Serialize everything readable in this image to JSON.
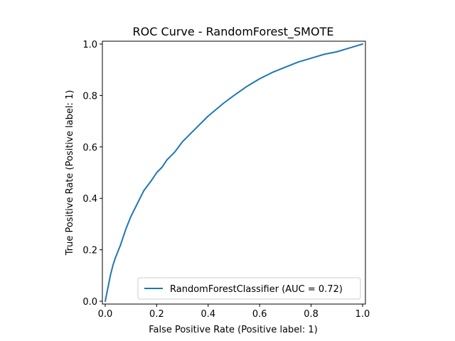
{
  "chart_data": {
    "type": "line",
    "title": "ROC Curve - RandomForest_SMOTE",
    "xlabel": "False Positive Rate (Positive label: 1)",
    "ylabel": "True Positive Rate (Positive label: 1)",
    "xlim": [
      0.0,
      1.0
    ],
    "ylim": [
      0.0,
      1.0
    ],
    "xticks": [
      "0.0",
      "0.2",
      "0.4",
      "0.6",
      "0.8",
      "1.0"
    ],
    "yticks": [
      "0.0",
      "0.2",
      "0.4",
      "0.6",
      "0.8",
      "1.0"
    ],
    "grid": false,
    "legend_position": "lower-right",
    "series": [
      {
        "name": "RandomForestClassifier (AUC = 0.72)",
        "color": "#1f77b4",
        "x": [
          0.0,
          0.01,
          0.02,
          0.03,
          0.04,
          0.06,
          0.08,
          0.1,
          0.12,
          0.15,
          0.18,
          0.2,
          0.22,
          0.24,
          0.27,
          0.3,
          0.35,
          0.4,
          0.46,
          0.5,
          0.55,
          0.6,
          0.65,
          0.7,
          0.75,
          0.8,
          0.85,
          0.9,
          0.95,
          1.0
        ],
        "y": [
          0.0,
          0.05,
          0.1,
          0.14,
          0.17,
          0.22,
          0.28,
          0.33,
          0.37,
          0.43,
          0.47,
          0.5,
          0.52,
          0.55,
          0.58,
          0.62,
          0.67,
          0.72,
          0.77,
          0.8,
          0.835,
          0.865,
          0.89,
          0.91,
          0.93,
          0.945,
          0.96,
          0.97,
          0.985,
          1.0
        ]
      }
    ]
  }
}
